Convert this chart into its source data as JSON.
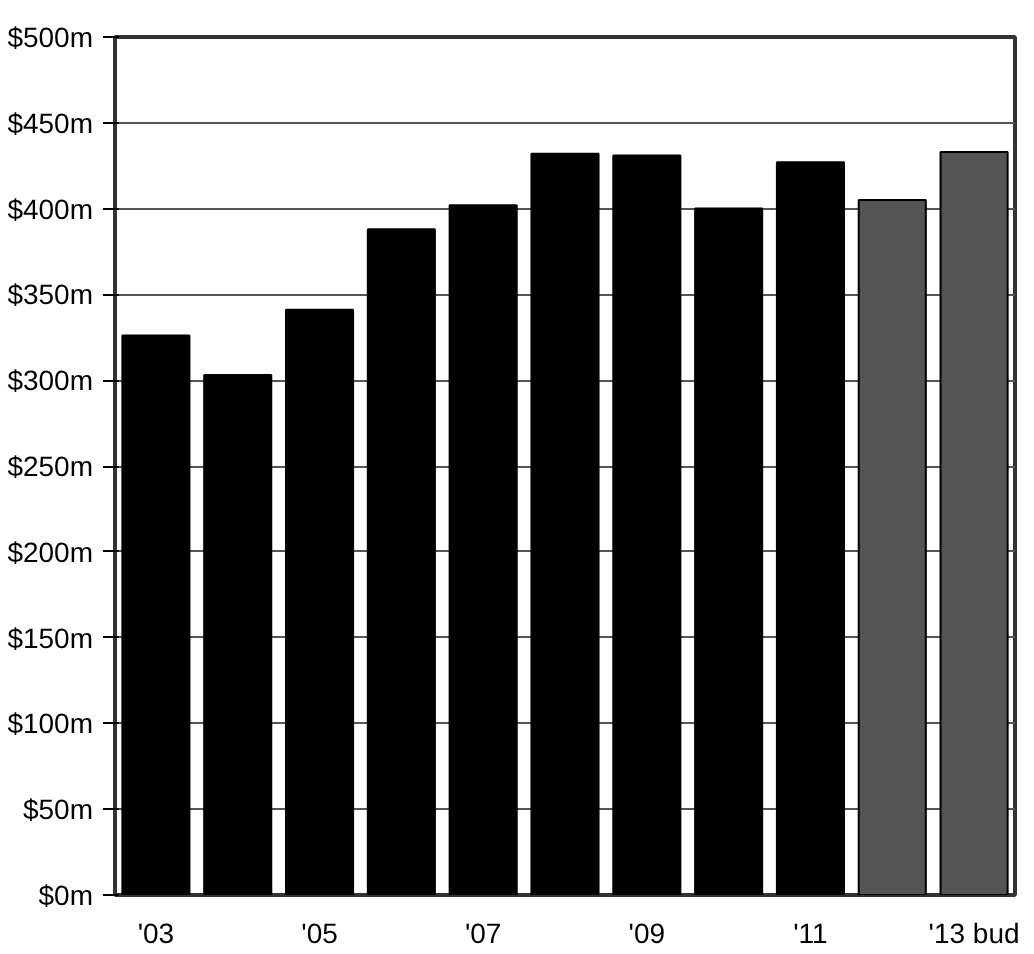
{
  "chart_data": {
    "type": "bar",
    "categories": [
      "'03",
      null,
      "'05",
      null,
      "'07",
      null,
      "'09",
      null,
      "'11",
      null,
      "'13 bud"
    ],
    "values": [
      326,
      303,
      341,
      388,
      402,
      432,
      431,
      400,
      427,
      405,
      433
    ],
    "colors": [
      "#000000",
      "#000000",
      "#000000",
      "#000000",
      "#000000",
      "#000000",
      "#000000",
      "#000000",
      "#000000",
      "#555555",
      "#555555"
    ],
    "ylim": [
      0,
      500
    ],
    "yticks": [
      {
        "value": 0,
        "label": "$0m"
      },
      {
        "value": 50,
        "label": "$50m"
      },
      {
        "value": 100,
        "label": "$100m"
      },
      {
        "value": 150,
        "label": "$150m"
      },
      {
        "value": 200,
        "label": "$200m"
      },
      {
        "value": 250,
        "label": "$250m"
      },
      {
        "value": 300,
        "label": "$300m"
      },
      {
        "value": 350,
        "label": "$350m"
      },
      {
        "value": 400,
        "label": "$400m"
      },
      {
        "value": 450,
        "label": "$450m"
      },
      {
        "value": 500,
        "label": "$500m"
      }
    ],
    "grid": "y"
  }
}
